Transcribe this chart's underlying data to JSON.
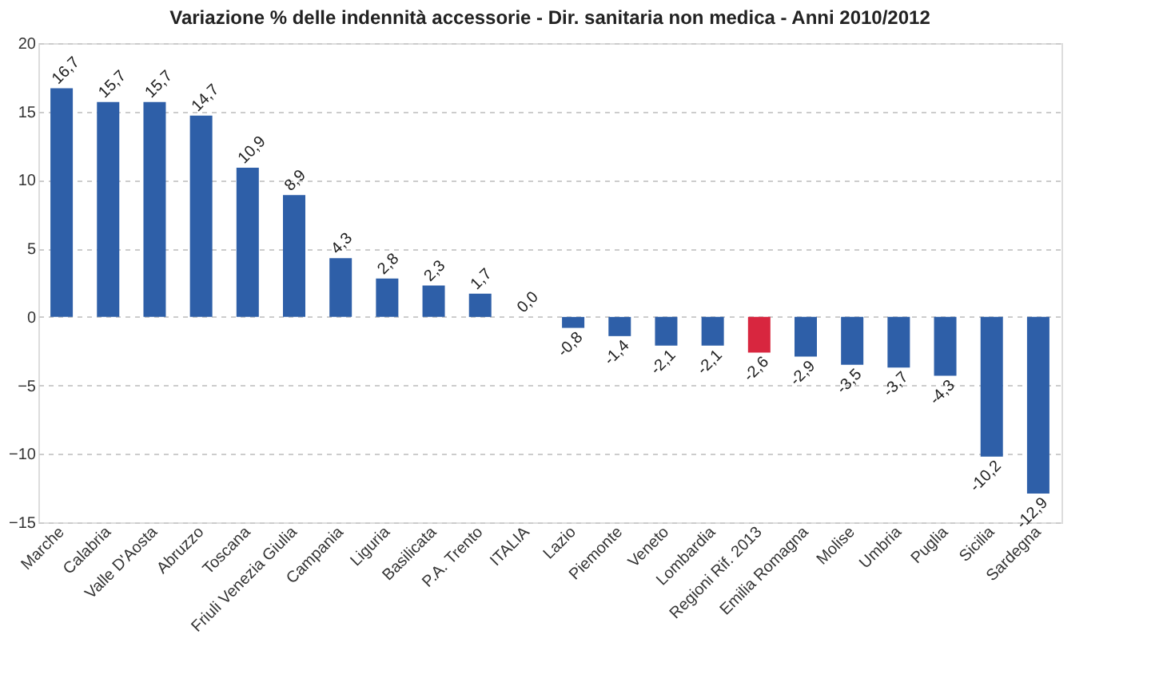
{
  "chart_data": {
    "type": "bar",
    "title": "Variazione % delle indennità accessorie - Dir. sanitaria non medica - Anni 2010/2012",
    "categories": [
      "Marche",
      "Calabria",
      "Valle D'Aosta",
      "Abruzzo",
      "Toscana",
      "Friuli Venezia Giulia",
      "Campania",
      "Liguria",
      "Basilicata",
      "P.A. Trento",
      "ITALIA",
      "Lazio",
      "Piemonte",
      "Veneto",
      "Lombardia",
      "Regioni Rif. 2013",
      "Emilia Romagna",
      "Molise",
      "Umbria",
      "Puglia",
      "Sicilia",
      "Sardegna"
    ],
    "values": [
      16.7,
      15.7,
      15.7,
      14.7,
      10.9,
      8.9,
      4.3,
      2.8,
      2.3,
      1.7,
      0.0,
      -0.8,
      -1.4,
      -2.1,
      -2.1,
      -2.6,
      -2.9,
      -3.5,
      -3.7,
      -4.3,
      -10.2,
      -12.9
    ],
    "value_labels": [
      "16,7",
      "15,7",
      "15,7",
      "14,7",
      "10,9",
      "8,9",
      "4,3",
      "2,8",
      "2,3",
      "1,7",
      "0,0",
      "-0,8",
      "-1,4",
      "-2,1",
      "-2,1",
      "-2,6",
      "-2,9",
      "-3,5",
      "-3,7",
      "-4,3",
      "-10,2",
      "-12,9"
    ],
    "colors": [
      "#2e5fa8",
      "#2e5fa8",
      "#2e5fa8",
      "#2e5fa8",
      "#2e5fa8",
      "#2e5fa8",
      "#2e5fa8",
      "#2e5fa8",
      "#2e5fa8",
      "#2e5fa8",
      "#2e5fa8",
      "#2e5fa8",
      "#2e5fa8",
      "#2e5fa8",
      "#2e5fa8",
      "#d8263f",
      "#2e5fa8",
      "#2e5fa8",
      "#2e5fa8",
      "#2e5fa8",
      "#2e5fa8",
      "#2e5fa8"
    ],
    "ylim": [
      -15,
      20
    ],
    "yticks": [
      -15,
      -10,
      -5,
      0,
      5,
      10,
      15,
      20
    ],
    "grid": "y"
  }
}
